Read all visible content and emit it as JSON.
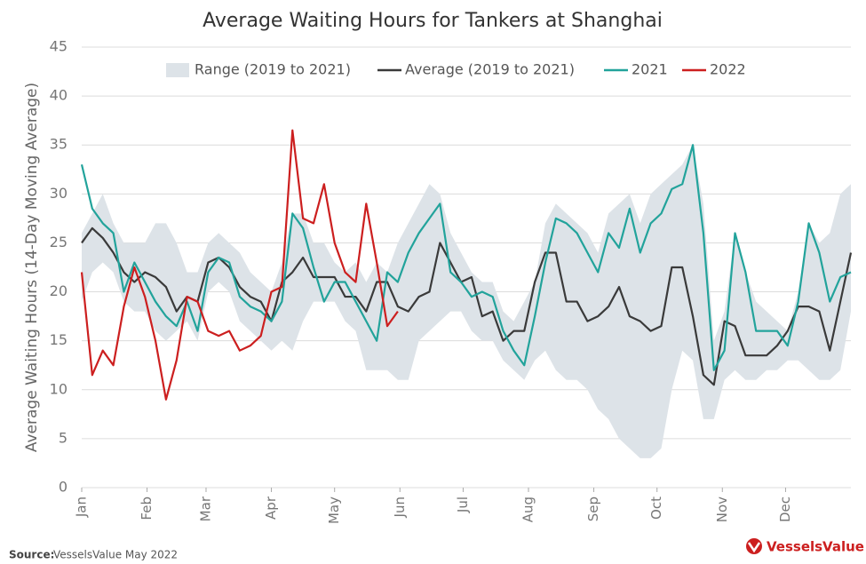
{
  "chart_data": {
    "type": "line",
    "title": "Average Waiting Hours for Tankers at Shanghai",
    "ylabel": "Average Waiting Hours (14-Day Moving Average)",
    "source_label": "Source:",
    "source": "VesselsValue May 2022",
    "logo": "VesselsValue",
    "xlim": [
      0,
      365
    ],
    "ylim": [
      0,
      45
    ],
    "yticks": [
      0,
      5,
      10,
      15,
      20,
      25,
      30,
      35,
      40,
      45
    ],
    "xticks": [
      {
        "value": 0,
        "label": "Jan"
      },
      {
        "value": 31,
        "label": "Feb"
      },
      {
        "value": 59,
        "label": "Mar"
      },
      {
        "value": 90,
        "label": "Apr"
      },
      {
        "value": 120,
        "label": "May"
      },
      {
        "value": 151,
        "label": "Jun"
      },
      {
        "value": 181,
        "label": "Jul"
      },
      {
        "value": 212,
        "label": "Aug"
      },
      {
        "value": 243,
        "label": "Sep"
      },
      {
        "value": 273,
        "label": "Oct"
      },
      {
        "value": 304,
        "label": "Nov"
      },
      {
        "value": 334,
        "label": "Dec"
      }
    ],
    "grid": true,
    "x": [
      0,
      5,
      10,
      15,
      20,
      25,
      30,
      35,
      40,
      45,
      50,
      55,
      60,
      65,
      70,
      75,
      80,
      85,
      90,
      95,
      100,
      105,
      110,
      115,
      120,
      125,
      130,
      135,
      140,
      145,
      150,
      155,
      160,
      165,
      170,
      175,
      180,
      185,
      190,
      195,
      200,
      205,
      210,
      215,
      220,
      225,
      230,
      235,
      240,
      245,
      250,
      255,
      260,
      265,
      270,
      275,
      280,
      285,
      290,
      295,
      300,
      305,
      310,
      315,
      320,
      325,
      330,
      335,
      340,
      345,
      350,
      355,
      360,
      365
    ],
    "range": {
      "name": "Range (2019 to 2021)",
      "color": "#dde3e8",
      "high": [
        26,
        28,
        30,
        27,
        25,
        25,
        25,
        27,
        27,
        25,
        22,
        22,
        25,
        26,
        25,
        24,
        22,
        21,
        20,
        23,
        28,
        28,
        25,
        25,
        23,
        22,
        23,
        21,
        23,
        22,
        25,
        27,
        29,
        31,
        30,
        26,
        24,
        22,
        21,
        21,
        18,
        17,
        19,
        21,
        27,
        29,
        28,
        27,
        26,
        24,
        28,
        29,
        30,
        27,
        30,
        31,
        32,
        33,
        35,
        29,
        15,
        18,
        26,
        22,
        19,
        18,
        17,
        16,
        20,
        27,
        25,
        26,
        30,
        31
      ],
      "low": [
        19,
        22,
        23,
        22,
        19,
        18,
        18,
        16,
        15,
        16,
        17,
        15,
        20,
        21,
        20,
        17,
        16,
        15,
        14,
        15,
        14,
        17,
        19,
        19,
        19,
        17,
        16,
        12,
        12,
        12,
        11,
        11,
        15,
        16,
        17,
        18,
        18,
        16,
        15,
        15,
        13,
        12,
        11,
        13,
        14,
        12,
        11,
        11,
        10,
        8,
        7,
        5,
        4,
        3,
        3,
        4,
        10,
        14,
        13,
        7,
        7,
        11,
        12,
        11,
        11,
        12,
        12,
        13,
        13,
        12,
        11,
        11,
        12,
        18
      ]
    },
    "series": [
      {
        "name": "Average (2019 to 2021)",
        "color": "#3a3a3a",
        "values": [
          25,
          26.5,
          25.5,
          24,
          22,
          21,
          22,
          21.5,
          20.5,
          18,
          19.5,
          19,
          23,
          23.5,
          22.5,
          20.5,
          19.5,
          19,
          17,
          21,
          22,
          23.5,
          21.5,
          21.5,
          21.5,
          19.5,
          19.5,
          18,
          21,
          21,
          18.5,
          18,
          19.5,
          20,
          25,
          23,
          21,
          21.5,
          17.5,
          18,
          15,
          16,
          16,
          21,
          24,
          24,
          19,
          19,
          17,
          17.5,
          18.5,
          20.5,
          17.5,
          17,
          16,
          16.5,
          22.5,
          22.5,
          17.5,
          11.5,
          10.5,
          17,
          16.5,
          13.5,
          13.5,
          13.5,
          14.5,
          16,
          18.5,
          18.5,
          18,
          14,
          19,
          24
        ]
      },
      {
        "name": "2021",
        "color": "#22a39b",
        "values": [
          33,
          28.5,
          27,
          26,
          20,
          23,
          21,
          19,
          17.5,
          16.5,
          19,
          16,
          22,
          23.5,
          23,
          19.5,
          18.5,
          18,
          17,
          19,
          28,
          26.5,
          22.5,
          19,
          21,
          21,
          19,
          17,
          15,
          22,
          21,
          24,
          26,
          27.5,
          29,
          22,
          21,
          19.5,
          20,
          19.5,
          16,
          14,
          12.5,
          17.5,
          23,
          27.5,
          27,
          26,
          24,
          22,
          26,
          24.5,
          28.5,
          24,
          27,
          28,
          30.5,
          31,
          35,
          26,
          12,
          14,
          26,
          22,
          16,
          16,
          16,
          14.5,
          19,
          27,
          24,
          19,
          21.5,
          22
        ]
      },
      {
        "name": "2022",
        "color": "#cc1f1f",
        "values": [
          22,
          11.5,
          14,
          12.5,
          18.5,
          22.5,
          19.5,
          15,
          9,
          13,
          19.5,
          19,
          16,
          15.5,
          16,
          14,
          14.5,
          15.5,
          20,
          20.5,
          36.5,
          27.5,
          27,
          31,
          25,
          22,
          21,
          29,
          23,
          16.5,
          18,
          null,
          null,
          null,
          null,
          null,
          null,
          null,
          null,
          null,
          null,
          null,
          null,
          null,
          null,
          null,
          null,
          null,
          null,
          null,
          null,
          null,
          null,
          null,
          null,
          null,
          null,
          null,
          null,
          null,
          null,
          null,
          null,
          null,
          null,
          null,
          null,
          null,
          null,
          null,
          null,
          null,
          null,
          null
        ]
      }
    ]
  }
}
